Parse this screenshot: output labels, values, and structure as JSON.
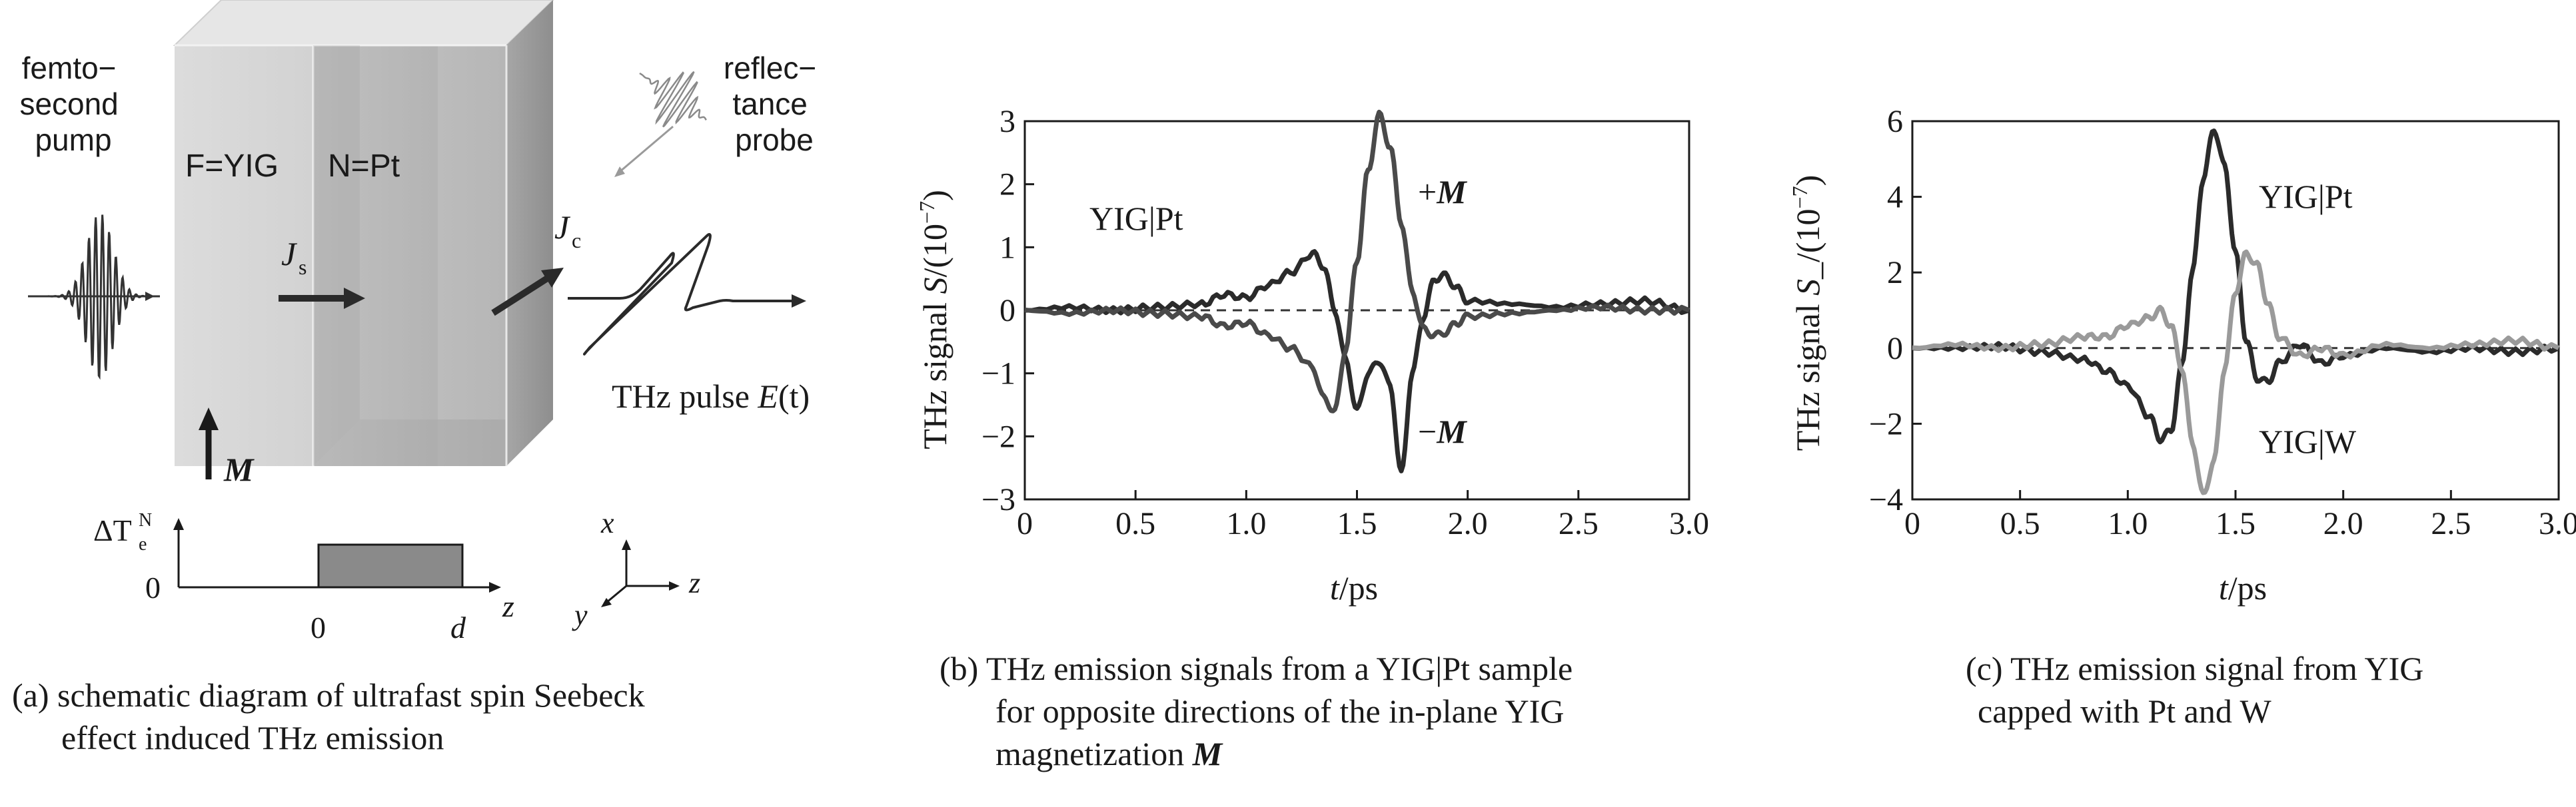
{
  "panel_a": {
    "pump_label": [
      "femto−",
      "second",
      "pump"
    ],
    "probe_label": [
      "reflec−",
      "tance",
      "probe"
    ],
    "f_label": "F=YIG",
    "n_label": "N=Pt",
    "js_base": "J",
    "js_sub": "s",
    "jc_base": "J",
    "jc_sub": "c",
    "m_label": "M",
    "thz_label_prefix": "THz pulse ",
    "thz_label_e": "E",
    "thz_label_t": "(t)",
    "dt_label_prefix": "ΔT",
    "dt_sub": "e",
    "dt_sup": "N",
    "zero_y": "0",
    "zero_x": "0",
    "d_label": "d",
    "z_axis_label": "z",
    "x_coord": "x",
    "y_coord": "y",
    "z_coord": "z",
    "caption": [
      "(a) schematic diagram of ultrafast spin Seebeck",
      "effect induced THz emission"
    ]
  },
  "panel_b": {
    "caption": [
      "(b) THz emission signals from a YIG|Pt sample",
      "for opposite directions of the in-plane YIG",
      "magnetization "
    ],
    "caption_m": "M",
    "inner_label": "YIG|Pt",
    "plus_label": "+",
    "minus_label": "−",
    "m_sym": "M"
  },
  "panel_c": {
    "caption": [
      "(c) THz emission signal from YIG",
      "capped with Pt and W"
    ],
    "label_pt": "YIG|Pt",
    "label_w": "YIG|W"
  },
  "chart_data": [
    {
      "type": "line",
      "xlabel_t": "t",
      "xlabel_unit": "/ps",
      "ylabel_prefix": "THz signal ",
      "ylabel_s": "S",
      "ylabel_unit": "/(10",
      "ylabel_exp": "−7",
      "ylabel_close": ")",
      "xlim": [
        0,
        3.0
      ],
      "ylim": [
        -3,
        3
      ],
      "xticks": [
        "0",
        "0.5",
        "1.0",
        "1.5",
        "2.0",
        "2.5",
        "3.0"
      ],
      "yticks": [
        "3",
        "2",
        "1",
        "0",
        "−1",
        "−2",
        "−3"
      ],
      "zero_line": "dashed",
      "series": [
        {
          "name": "+M",
          "color": "#2b2b2b",
          "x": [
            0,
            0.2,
            0.4,
            0.6,
            0.8,
            0.9,
            1.0,
            1.1,
            1.2,
            1.3,
            1.35,
            1.4,
            1.45,
            1.5,
            1.55,
            1.6,
            1.65,
            1.7,
            1.75,
            1.8,
            1.85,
            1.9,
            1.95,
            2.0,
            2.2,
            2.4,
            2.6,
            2.8,
            3.0
          ],
          "y": [
            0.0,
            0.05,
            0.0,
            0.05,
            0.1,
            0.25,
            0.2,
            0.4,
            0.6,
            0.9,
            0.7,
            0.0,
            -0.8,
            -1.6,
            -1.0,
            -0.8,
            -1.2,
            -2.6,
            -1.0,
            -0.1,
            0.5,
            0.55,
            0.35,
            0.15,
            0.1,
            0.05,
            0.1,
            0.15,
            0.0
          ]
        },
        {
          "name": "−M",
          "color": "#4a4a4a",
          "x": [
            0,
            0.2,
            0.4,
            0.6,
            0.8,
            0.9,
            1.0,
            1.1,
            1.2,
            1.3,
            1.35,
            1.4,
            1.45,
            1.5,
            1.55,
            1.6,
            1.65,
            1.7,
            1.75,
            1.8,
            1.85,
            1.9,
            1.95,
            2.0,
            2.2,
            2.4,
            2.6,
            2.8,
            3.0
          ],
          "y": [
            0.0,
            -0.05,
            0.0,
            -0.05,
            -0.1,
            -0.25,
            -0.2,
            -0.4,
            -0.6,
            -0.9,
            -1.4,
            -1.6,
            -0.6,
            0.8,
            2.2,
            3.1,
            2.6,
            1.4,
            0.3,
            -0.3,
            -0.4,
            -0.35,
            -0.2,
            -0.1,
            -0.05,
            0.0,
            0.05,
            0.0,
            0.0
          ]
        }
      ]
    },
    {
      "type": "line",
      "xlabel_t": "t",
      "xlabel_unit": "/ps",
      "ylabel_prefix": "THz signal ",
      "ylabel_s": "S",
      "ylabel_sub": "_",
      "ylabel_unit": "/(10",
      "ylabel_exp": "−7",
      "ylabel_close": ")",
      "xlim": [
        0,
        3.0
      ],
      "ylim": [
        -4,
        6
      ],
      "xticks": [
        "0",
        "0.5",
        "1.0",
        "1.5",
        "2.0",
        "2.5",
        "3.0"
      ],
      "yticks": [
        "6",
        "4",
        "2",
        "0",
        "−2",
        "−4"
      ],
      "zero_line": "dashed",
      "series": [
        {
          "name": "YIG|Pt",
          "color": "#2b2b2b",
          "x": [
            0,
            0.2,
            0.4,
            0.6,
            0.8,
            0.9,
            1.0,
            1.1,
            1.15,
            1.2,
            1.25,
            1.3,
            1.35,
            1.4,
            1.45,
            1.5,
            1.55,
            1.6,
            1.65,
            1.7,
            1.8,
            1.9,
            2.0,
            2.2,
            2.4,
            2.6,
            2.8,
            3.0
          ],
          "y": [
            0.0,
            0.0,
            0.05,
            -0.1,
            -0.3,
            -0.6,
            -1.0,
            -1.8,
            -2.4,
            -2.2,
            -0.5,
            2.0,
            4.5,
            5.8,
            4.8,
            2.5,
            0.2,
            -0.8,
            -0.9,
            -0.4,
            0.1,
            -0.4,
            -0.2,
            0.0,
            -0.1,
            0.0,
            -0.1,
            0.0
          ]
        },
        {
          "name": "YIG|W",
          "color": "#9a9a9a",
          "x": [
            0,
            0.2,
            0.4,
            0.6,
            0.8,
            0.9,
            1.0,
            1.1,
            1.15,
            1.2,
            1.25,
            1.3,
            1.35,
            1.4,
            1.45,
            1.5,
            1.55,
            1.6,
            1.65,
            1.7,
            1.8,
            1.9,
            2.0,
            2.2,
            2.4,
            2.6,
            2.8,
            3.0
          ],
          "y": [
            0.0,
            0.1,
            0.0,
            0.1,
            0.3,
            0.3,
            0.6,
            0.8,
            1.0,
            0.6,
            -0.5,
            -2.5,
            -3.9,
            -3.0,
            -0.5,
            1.5,
            2.5,
            2.2,
            1.2,
            0.3,
            -0.2,
            0.0,
            -0.2,
            0.1,
            0.0,
            0.1,
            0.2,
            0.0
          ]
        }
      ]
    }
  ]
}
